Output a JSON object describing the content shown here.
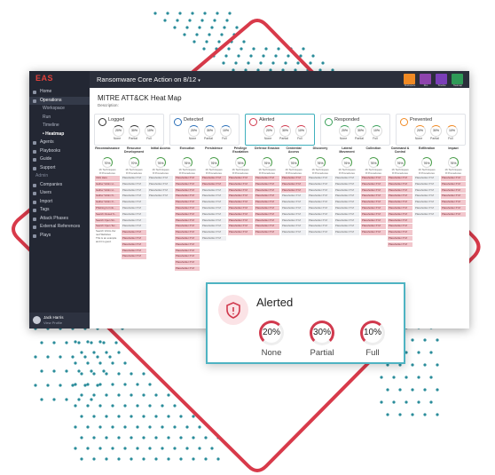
{
  "app": {
    "logo": "EAS",
    "title": "Ransomware Core Action on 8/12",
    "title_chevron": "chevron-down-icon",
    "toolbar": [
      {
        "label": "Workspace",
        "color": "#f08a24"
      },
      {
        "label": "Run",
        "color": "#8e44ad"
      },
      {
        "label": "Timeline",
        "color": "#7b3fb8"
      },
      {
        "label": "Heatmap",
        "color": "#2f9a57"
      }
    ]
  },
  "sidebar": {
    "items": [
      {
        "label": "Home",
        "type": "item"
      },
      {
        "label": "Operations",
        "type": "item",
        "active": true
      },
      {
        "label": "Workspace",
        "type": "sub"
      },
      {
        "label": "Run",
        "type": "sub"
      },
      {
        "label": "Timeline",
        "type": "sub"
      },
      {
        "label": "• Heatmap",
        "type": "sub",
        "current": true
      },
      {
        "label": "Agents",
        "type": "item"
      },
      {
        "label": "Playbooks",
        "type": "item"
      },
      {
        "label": "Guide",
        "type": "item"
      },
      {
        "label": "Support",
        "type": "item"
      },
      {
        "label": "Admin",
        "type": "section"
      },
      {
        "label": "Companies",
        "type": "item"
      },
      {
        "label": "Users",
        "type": "item"
      },
      {
        "label": "Import",
        "type": "item"
      },
      {
        "label": "Tags",
        "type": "item"
      },
      {
        "label": "Attack Phases",
        "type": "item"
      },
      {
        "label": "External References",
        "type": "item"
      },
      {
        "label": "Plays",
        "type": "item"
      }
    ],
    "user": {
      "name": "Jack Harris",
      "link": "View Profile"
    }
  },
  "page": {
    "title": "MITRE ATT&CK Heat Map",
    "description_label": "Description:"
  },
  "summary_cards": [
    {
      "title": "Logged",
      "icon": "clipboard-icon",
      "accent": "#333333",
      "selected": false,
      "stats": [
        {
          "value": "20%",
          "label": "None"
        },
        {
          "value": "30%",
          "label": "Partial"
        },
        {
          "value": "10%",
          "label": "Full"
        }
      ]
    },
    {
      "title": "Detected",
      "icon": "search-icon",
      "accent": "#2a6fb8",
      "selected": false,
      "stats": [
        {
          "value": "20%",
          "label": "None"
        },
        {
          "value": "30%",
          "label": "Partial"
        },
        {
          "value": "10%",
          "label": "Full"
        }
      ]
    },
    {
      "title": "Alerted",
      "icon": "shield-alert-icon",
      "accent": "#d13a4e",
      "selected": true,
      "stats": [
        {
          "value": "20%",
          "label": "None"
        },
        {
          "value": "30%",
          "label": "Partial"
        },
        {
          "value": "10%",
          "label": "Full"
        }
      ]
    },
    {
      "title": "Responded",
      "icon": "chat-icon",
      "accent": "#3aa05a",
      "selected": false,
      "stats": [
        {
          "value": "20%",
          "label": "None"
        },
        {
          "value": "30%",
          "label": "Partial"
        },
        {
          "value": "10%",
          "label": "Full"
        }
      ]
    },
    {
      "title": "Prevented",
      "icon": "block-icon",
      "accent": "#f08a24",
      "selected": false,
      "stats": [
        {
          "value": "20%",
          "label": "None"
        },
        {
          "value": "30%",
          "label": "Partial"
        },
        {
          "value": "10%",
          "label": "Full"
        }
      ]
    }
  ],
  "tactics": [
    {
      "name": "Reconnaissance",
      "pct": "70%",
      "count": "16 Techniques\n8 Procedures",
      "cells": [
        [
          "red",
          "Click Here"
        ],
        [
          "red",
          "Gather Victim H..."
        ],
        [
          "red",
          "Gather Victim H..."
        ],
        [
          "red",
          "Gather Victim N..."
        ],
        [
          "red",
          "Gather Victim O..."
        ],
        [
          "red",
          "Phishing for Info..."
        ],
        [
          "red",
          "Search Closed S..."
        ],
        [
          "red",
          "Search Open Sit..."
        ],
        [
          "red",
          "Search Open Tec..."
        ],
        [
          "txt",
          "Search Victim-Ow ned Websites"
        ],
        [
          "txt",
          "This is an example and it is good."
        ]
      ]
    },
    {
      "name": "Resource Development",
      "pct": "70%",
      "count": "16 Techniques\n8 Procedures",
      "cells": [
        [
          "gray",
          "Placeholder XYZ"
        ],
        [
          "gray",
          "Placeholder XYZ"
        ],
        [
          "gray",
          "Placeholder XYZ"
        ],
        [
          "gray",
          "Placeholder XYZ"
        ],
        [
          "gray",
          "Placeholder XYZ"
        ],
        [
          "gray",
          "Placeholder XYZ"
        ],
        [
          "gray",
          "Placeholder XYZ"
        ],
        [
          "gray",
          "Placeholder XYZ"
        ],
        [
          "gray",
          "Placeholder XYZ"
        ],
        [
          "red",
          "Placeholder XYZ"
        ],
        [
          "red",
          "Placeholder XYZ"
        ],
        [
          "red",
          "Placeholder XYZ"
        ],
        [
          "red",
          "Placeholder XYZ"
        ],
        [
          "red",
          "Placeholder XYZ"
        ]
      ]
    },
    {
      "name": "Initial Access",
      "pct": "76%",
      "count": "16 Techniques\n8 Procedures",
      "cells": [
        [
          "gray",
          "Placeholder XYZ"
        ],
        [
          "gray",
          "Placeholder XYZ"
        ],
        [
          "gray",
          "Placeholder XYZ"
        ],
        [
          "gray",
          "Placeholder XYZ"
        ]
      ]
    },
    {
      "name": "Execution",
      "pct": "76%",
      "count": "16 Techniques\n8 Procedures",
      "cells": [
        [
          "red",
          "Placeholder XYZ"
        ],
        [
          "red",
          "Placeholder XYZ"
        ],
        [
          "red",
          "Placeholder XYZ"
        ],
        [
          "red",
          "Placeholder XYZ"
        ],
        [
          "red",
          "Placeholder XYZ"
        ],
        [
          "red",
          "Placeholder XYZ"
        ],
        [
          "red",
          "Placeholder XYZ"
        ],
        [
          "red",
          "Placeholder XYZ"
        ],
        [
          "red",
          "Placeholder XYZ"
        ],
        [
          "red",
          "Placeholder XYZ"
        ],
        [
          "red",
          "Placeholder XYZ"
        ],
        [
          "red",
          "Placeholder XYZ"
        ],
        [
          "red",
          "Placeholder XYZ"
        ],
        [
          "red",
          "Placeholder XYZ"
        ],
        [
          "red",
          "Placeholder XYZ"
        ],
        [
          "red",
          "Placeholder XYZ"
        ]
      ]
    },
    {
      "name": "Persistence",
      "pct": "76%",
      "count": "16 Techniques\n8 Procedures",
      "cells": [
        [
          "red",
          "Placeholder XYZ"
        ],
        [
          "red",
          "Placeholder XYZ"
        ],
        [
          "gray",
          "Placeholder XYZ"
        ],
        [
          "gray",
          "Placeholder XYZ"
        ],
        [
          "gray",
          "Placeholder XYZ"
        ],
        [
          "gray",
          "Placeholder XYZ"
        ],
        [
          "gray",
          "Placeholder XYZ"
        ],
        [
          "gray",
          "Placeholder XYZ"
        ],
        [
          "gray",
          "Placeholder XYZ"
        ],
        [
          "gray",
          "Placeholder XYZ"
        ],
        [
          "gray",
          "Placeholder XYZ"
        ]
      ]
    },
    {
      "name": "Privilege Escalation",
      "pct": "76%",
      "count": "16 Techniques\n8 Procedures",
      "cells": [
        [
          "red",
          "Placeholder XYZ"
        ],
        [
          "red",
          "Placeholder XYZ"
        ],
        [
          "red",
          "Placeholder XYZ"
        ],
        [
          "red",
          "Placeholder XYZ"
        ],
        [
          "red",
          "Placeholder XYZ"
        ],
        [
          "red",
          "Placeholder XYZ"
        ],
        [
          "red",
          "Placeholder XYZ"
        ],
        [
          "red",
          "Placeholder XYZ"
        ],
        [
          "red",
          "Placeholder XYZ"
        ],
        [
          "red",
          "Placeholder XYZ"
        ]
      ]
    },
    {
      "name": "Defense Evasion",
      "pct": "76%",
      "count": "16 Techniques\n8 Procedures",
      "cells": [
        [
          "red",
          "Placeholder XYZ"
        ],
        [
          "red",
          "Placeholder XYZ"
        ],
        [
          "red",
          "Placeholder XYZ"
        ],
        [
          "red",
          "Placeholder XYZ"
        ],
        [
          "red",
          "Placeholder XYZ"
        ],
        [
          "red",
          "Placeholder XYZ"
        ],
        [
          "red",
          "Placeholder XYZ"
        ],
        [
          "red",
          "Placeholder XYZ"
        ],
        [
          "red",
          "Placeholder XYZ"
        ],
        [
          "red",
          "Placeholder XYZ"
        ]
      ]
    },
    {
      "name": "Credential Access",
      "pct": "76%",
      "count": "16 Techniques\n8 Procedures",
      "cells": [
        [
          "red",
          "Placeholder XYZ"
        ],
        [
          "red",
          "Placeholder XYZ"
        ],
        [
          "red",
          "Placeholder XYZ"
        ],
        [
          "gray",
          "Placeholder XYZ"
        ],
        [
          "gray",
          "Placeholder XYZ"
        ],
        [
          "gray",
          "Placeholder XYZ"
        ],
        [
          "gray",
          "Placeholder XYZ"
        ],
        [
          "gray",
          "Placeholder XYZ"
        ],
        [
          "gray",
          "Placeholder XYZ"
        ],
        [
          "gray",
          "Placeholder XYZ"
        ]
      ]
    },
    {
      "name": "Discovery",
      "pct": "76%",
      "count": "16 Techniques\n8 Procedures",
      "cells": [
        [
          "gray",
          "Placeholder XYZ"
        ],
        [
          "gray",
          "Placeholder XYZ"
        ],
        [
          "gray",
          "Placeholder XYZ"
        ],
        [
          "gray",
          "Placeholder XYZ"
        ],
        [
          "gray",
          "Placeholder XYZ"
        ],
        [
          "gray",
          "Placeholder XYZ"
        ],
        [
          "gray",
          "Placeholder XYZ"
        ],
        [
          "gray",
          "Placeholder XYZ"
        ],
        [
          "gray",
          "Placeholder XYZ"
        ],
        [
          "gray",
          "Placeholder XYZ"
        ]
      ]
    },
    {
      "name": "Lateral Movement",
      "pct": "76%",
      "count": "16 Techniques\n8 Procedures",
      "cells": [
        [
          "gray",
          "Placeholder XYZ"
        ],
        [
          "gray",
          "Placeholder XYZ"
        ],
        [
          "gray",
          "Placeholder XYZ"
        ],
        [
          "gray",
          "Placeholder XYZ"
        ],
        [
          "gray",
          "Placeholder XYZ"
        ],
        [
          "gray",
          "Placeholder XYZ"
        ],
        [
          "gray",
          "Placeholder XYZ"
        ],
        [
          "gray",
          "Placeholder XYZ"
        ],
        [
          "gray",
          "Placeholder XYZ"
        ],
        [
          "gray",
          "Placeholder XYZ"
        ]
      ]
    },
    {
      "name": "Collection",
      "pct": "76%",
      "count": "16 Techniques\n8 Procedures",
      "cells": [
        [
          "red",
          "Placeholder XYZ"
        ],
        [
          "red",
          "Placeholder XYZ"
        ],
        [
          "red",
          "Placeholder XYZ"
        ],
        [
          "red",
          "Placeholder XYZ"
        ],
        [
          "red",
          "Placeholder XYZ"
        ],
        [
          "red",
          "Placeholder XYZ"
        ],
        [
          "red",
          "Placeholder XYZ"
        ],
        [
          "red",
          "Placeholder XYZ"
        ],
        [
          "red",
          "Placeholder XYZ"
        ],
        [
          "red",
          "Placeholder XYZ"
        ]
      ]
    },
    {
      "name": "Command & Control",
      "pct": "76%",
      "count": "16 Techniques\n8 Procedures",
      "cells": [
        [
          "red",
          "Placeholder XYZ"
        ],
        [
          "red",
          "Placeholder XYZ"
        ],
        [
          "red",
          "Placeholder XYZ"
        ],
        [
          "red",
          "Placeholder XYZ"
        ],
        [
          "red",
          "Placeholder XYZ"
        ],
        [
          "red",
          "Placeholder XYZ"
        ],
        [
          "red",
          "Placeholder XYZ"
        ],
        [
          "red",
          "Placeholder XYZ"
        ],
        [
          "red",
          "Placeholder XYZ"
        ],
        [
          "red",
          "Placeholder XYZ"
        ],
        [
          "red",
          "Placeholder XYZ"
        ],
        [
          "red",
          "Placeholder XYZ"
        ]
      ]
    },
    {
      "name": "Exfiltration",
      "pct": "76%",
      "count": "16 Techniques\n8 Procedures",
      "cells": [
        [
          "gray",
          "Placeholder XYZ"
        ],
        [
          "gray",
          "Placeholder XYZ"
        ],
        [
          "gray",
          "Placeholder XYZ"
        ],
        [
          "gray",
          "Placeholder XYZ"
        ],
        [
          "gray",
          "Placeholder XYZ"
        ],
        [
          "gray",
          "Placeholder XYZ"
        ],
        [
          "gray",
          "Placeholder XYZ"
        ]
      ]
    },
    {
      "name": "Impact",
      "pct": "76%",
      "count": "16 Techniques\n8 Procedures",
      "cells": [
        [
          "red",
          "Placeholder XYZ"
        ],
        [
          "red",
          "Placeholder XYZ"
        ],
        [
          "red",
          "Placeholder XYZ"
        ],
        [
          "red",
          "Placeholder XYZ"
        ],
        [
          "red",
          "Placeholder XYZ"
        ],
        [
          "red",
          "Placeholder XYZ"
        ],
        [
          "red",
          "Placeholder XYZ"
        ]
      ]
    }
  ],
  "zoom_card": {
    "title": "Alerted",
    "icon": "shield-alert-icon",
    "stats": [
      {
        "value": "20%",
        "label": "None",
        "fraction": 0.2
      },
      {
        "value": "30%",
        "label": "Partial",
        "fraction": 0.3
      },
      {
        "value": "10%",
        "label": "Full",
        "fraction": 0.1
      }
    ],
    "ring_color": "#d13a4e"
  }
}
